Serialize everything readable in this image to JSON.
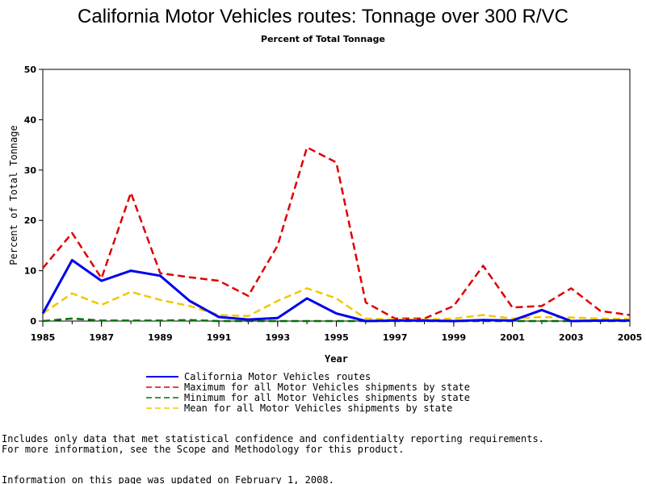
{
  "chart_data": {
    "type": "line",
    "title": "California Motor Vehicles routes: Tonnage over 300 R/VC",
    "subtitle": "Percent of Total Tonnage",
    "xlabel": "Year",
    "ylabel": "Percent of Total Tonnage",
    "xlim": [
      1985,
      2005
    ],
    "ylim": [
      0,
      50
    ],
    "x_ticks": [
      "1985",
      "1987",
      "1989",
      "1991",
      "1993",
      "1995",
      "1997",
      "1999",
      "2001",
      "2003",
      "2005"
    ],
    "y_ticks": [
      "0",
      "10",
      "20",
      "30",
      "40",
      "50"
    ],
    "grid": false,
    "legend_position": "bottom",
    "x": [
      1985,
      1986,
      1987,
      1988,
      1989,
      1990,
      1991,
      1992,
      1993,
      1994,
      1995,
      1996,
      1997,
      1998,
      1999,
      2000,
      2001,
      2002,
      2003,
      2004,
      2005
    ],
    "series": [
      {
        "name": "California Motor Vehicles routes",
        "color": "#0000ee",
        "dash": "solid",
        "values": [
          1.5,
          12.1,
          8.0,
          10.0,
          9.0,
          4.0,
          0.8,
          0.3,
          0.6,
          4.5,
          1.5,
          0.0,
          0.1,
          0.1,
          0.0,
          0.2,
          0.1,
          2.2,
          0.0,
          0.1,
          0.1
        ]
      },
      {
        "name": "Maximum for all Motor Vehicles shipments by state",
        "color": "#e00000",
        "dash": "long",
        "values": [
          10.5,
          17.5,
          8.5,
          25.5,
          9.5,
          8.7,
          8.0,
          5.0,
          15.0,
          34.5,
          31.5,
          3.7,
          0.5,
          0.5,
          3.0,
          11.0,
          2.7,
          3.0,
          6.5,
          2.0,
          1.2
        ]
      },
      {
        "name": "Minimum for all Motor Vehicles shipments by state",
        "color": "#007000",
        "dash": "long",
        "values": [
          0.0,
          0.5,
          0.1,
          0.1,
          0.1,
          0.2,
          0.0,
          0.0,
          0.0,
          0.0,
          0.0,
          0.0,
          0.0,
          0.0,
          0.0,
          0.0,
          0.0,
          0.0,
          0.0,
          0.0,
          0.0
        ]
      },
      {
        "name": "Mean for all Motor Vehicles shipments by state",
        "color": "#f0c800",
        "dash": "long",
        "values": [
          1.5,
          5.5,
          3.2,
          5.8,
          4.2,
          3.0,
          1.2,
          1.0,
          4.0,
          6.5,
          4.5,
          0.5,
          0.3,
          0.3,
          0.5,
          1.2,
          0.5,
          0.8,
          0.7,
          0.5,
          0.4
        ]
      }
    ]
  },
  "notes": {
    "line1": "Includes only data that met statistical confidence and confidentialty reporting requirements.",
    "line2": "For more information, see the Scope and Methodology for this product.",
    "line3": "Information on this page was updated on February 1, 2008."
  }
}
